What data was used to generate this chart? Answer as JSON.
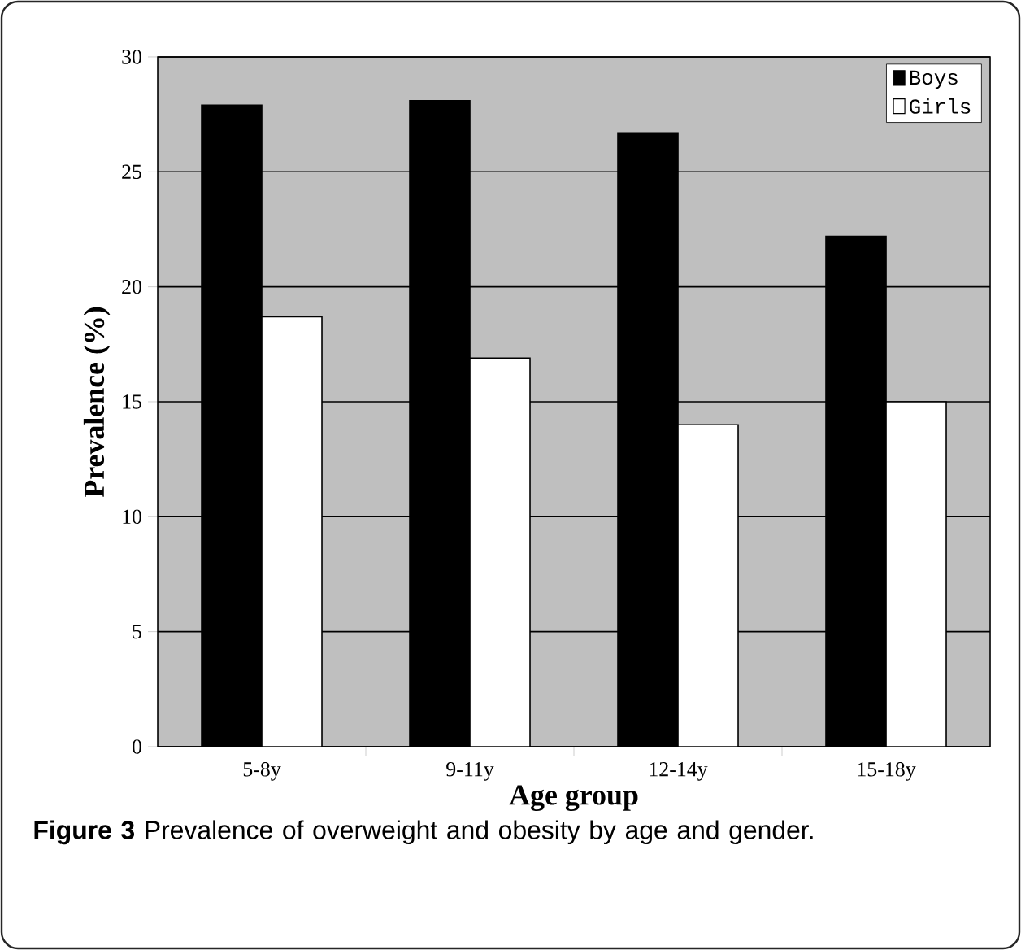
{
  "chart_data": {
    "type": "bar",
    "xlabel": "Age group",
    "ylabel": "Prevalence (%)",
    "categories": [
      "5-8y",
      "9-11y",
      "12-14y",
      "15-18y"
    ],
    "series": [
      {
        "name": "Boys",
        "color": "#000000",
        "values": [
          27.9,
          28.1,
          26.7,
          22.2
        ]
      },
      {
        "name": "Girls",
        "color": "#ffffff",
        "values": [
          18.7,
          16.9,
          14.0,
          15.0
        ]
      }
    ],
    "ylim": [
      0,
      30
    ],
    "yticks": [
      0,
      5,
      10,
      15,
      20,
      25,
      30
    ],
    "grid": "y",
    "legend": "top right",
    "annotations": [
      "**Figure 3** Prevalence of overweight and obesity by age and gender."
    ]
  }
}
